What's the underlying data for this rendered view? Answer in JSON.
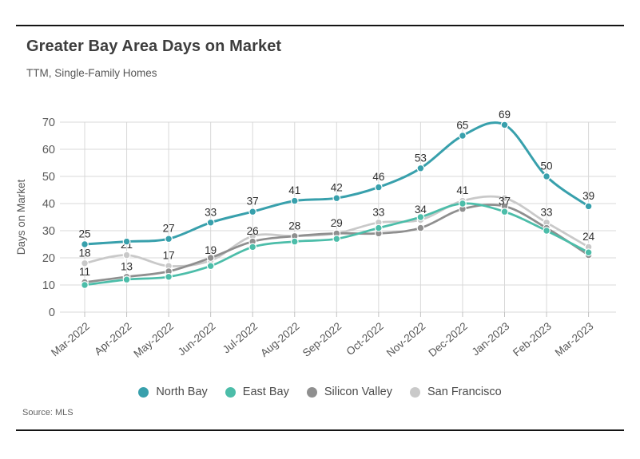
{
  "header": {
    "title": "Greater Bay Area Days on Market",
    "subtitle": "TTM, Single-Family Homes"
  },
  "source_note": "Source: MLS",
  "chart_data": {
    "type": "line",
    "title": "Greater Bay Area Days on Market",
    "subtitle": "TTM, Single-Family Homes",
    "xlabel": "",
    "ylabel": "Days on Market",
    "ylim": [
      0,
      70
    ],
    "yticks": [
      0,
      10,
      20,
      30,
      40,
      50,
      60,
      70
    ],
    "grid": true,
    "legend_position": "bottom",
    "categories": [
      "Mar-2022",
      "Apr-2022",
      "May-2022",
      "Jun-2022",
      "Jul-2022",
      "Aug-2022",
      "Sep-2022",
      "Oct-2022",
      "Nov-2022",
      "Dec-2022",
      "Jan-2023",
      "Feb-2023",
      "Mar-2023"
    ],
    "series": [
      {
        "name": "North Bay",
        "color": "#38a0ac",
        "values": [
          25,
          26,
          27,
          33,
          37,
          41,
          42,
          46,
          53,
          65,
          69,
          50,
          39
        ],
        "point_labels": [
          "25",
          "",
          "27",
          "33",
          "37",
          "41",
          "42",
          "46",
          "53",
          "65",
          "69",
          "50",
          "39"
        ]
      },
      {
        "name": "East Bay",
        "color": "#4cbda9",
        "values": [
          10,
          12,
          13,
          17,
          24,
          26,
          27,
          31,
          35,
          40,
          37,
          30,
          22
        ],
        "point_labels": [
          "",
          "",
          "",
          "",
          "",
          "",
          "",
          "",
          "",
          "",
          "37",
          "",
          ""
        ]
      },
      {
        "name": "Silicon Valley",
        "color": "#8f8f8f",
        "values": [
          11,
          13,
          15,
          20,
          26,
          28,
          29,
          29,
          31,
          38,
          39,
          31,
          21
        ],
        "point_labels": [
          "11",
          "13",
          "",
          "",
          "26",
          "",
          "",
          "",
          "",
          "",
          "",
          "",
          ""
        ]
      },
      {
        "name": "San Francisco",
        "color": "#c9c9c9",
        "values": [
          18,
          21,
          17,
          19,
          28,
          28,
          29,
          33,
          34,
          41,
          42,
          33,
          24
        ],
        "point_labels": [
          "18",
          "21",
          "17",
          "19",
          "",
          "28",
          "29",
          "33",
          "34",
          "41",
          "",
          "33",
          "24"
        ]
      }
    ],
    "grid_color": "#d8d8d8",
    "axis_text_color": "#595959",
    "data_label_color": "#2e2e2e"
  }
}
